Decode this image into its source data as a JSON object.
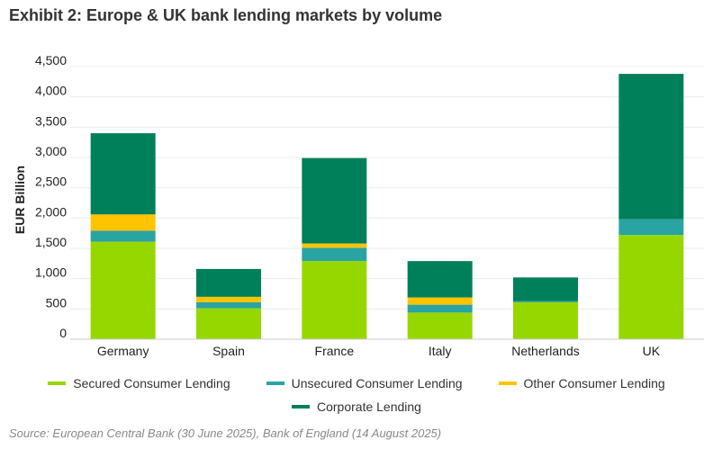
{
  "title": "Exhibit 2: Europe & UK bank lending markets by volume",
  "source": "Source: European Central Bank (30 June 2025), Bank of England (14 August 2025)",
  "chart_data": {
    "type": "bar",
    "stacked": true,
    "title": "Exhibit 2: Europe & UK bank lending markets by volume",
    "xlabel": "",
    "ylabel": "EUR Billion",
    "ylim": [
      0,
      4500
    ],
    "yticks": [
      0,
      500,
      1000,
      1500,
      2000,
      2500,
      3000,
      3500,
      4000,
      4500
    ],
    "ytick_labels": [
      "0",
      "500",
      "1,000",
      "1,500",
      "2,000",
      "2,500",
      "3,000",
      "3,500",
      "4,000",
      "4,500"
    ],
    "grid": true,
    "legend_position": "bottom",
    "categories": [
      "Germany",
      "Spain",
      "France",
      "Italy",
      "Netherlands",
      "UK"
    ],
    "series": [
      {
        "name": "Secured Consumer Lending",
        "color": "#97d700",
        "values": [
          1610,
          510,
          1290,
          440,
          610,
          1720
        ]
      },
      {
        "name": "Unsecured Consumer Lending",
        "color": "#2aa3a3",
        "values": [
          180,
          100,
          220,
          130,
          20,
          260
        ]
      },
      {
        "name": "Other Consumer Lending",
        "color": "#ffc400",
        "values": [
          270,
          90,
          70,
          120,
          0,
          0
        ]
      },
      {
        "name": "Corporate Lending",
        "color": "#00805a",
        "values": [
          1340,
          460,
          1410,
          600,
          390,
          2400
        ]
      }
    ]
  }
}
